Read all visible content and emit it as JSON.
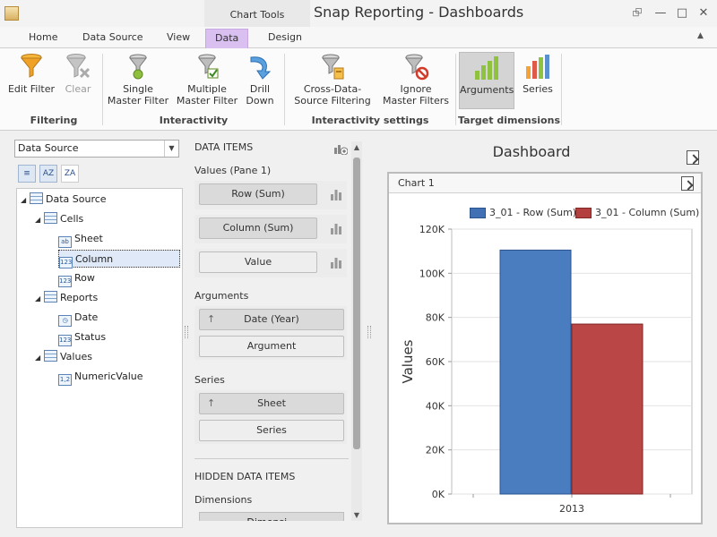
{
  "window": {
    "context_tab": "Chart Tools",
    "title": "Snap Reporting - Dashboards"
  },
  "tabs": [
    {
      "label": "Home"
    },
    {
      "label": "Data Source"
    },
    {
      "label": "View"
    },
    {
      "label": "Data",
      "active": true
    },
    {
      "label": "Design"
    }
  ],
  "ribbon": {
    "groups": [
      {
        "label": "Filtering"
      },
      {
        "label": "Interactivity"
      },
      {
        "label": "Interactivity settings"
      },
      {
        "label": "Target dimensions"
      }
    ],
    "buttons": [
      {
        "label": "Edit Filter",
        "icon": "funnel-icon"
      },
      {
        "label": "Clear",
        "icon": "clear-filter-icon",
        "disabled": true
      },
      {
        "label": "Single Master Filter",
        "icon": "single-master-filter-icon"
      },
      {
        "label": "Multiple Master Filter",
        "icon": "multiple-master-filter-icon"
      },
      {
        "label": "Drill Down",
        "icon": "drill-down-icon"
      },
      {
        "label": "Cross-Data-Source Filtering",
        "icon": "cross-data-source-icon"
      },
      {
        "label": "Ignore Master Filters",
        "icon": "ignore-filters-icon"
      },
      {
        "label": "Arguments",
        "icon": "arguments-chart-icon",
        "selected": true
      },
      {
        "label": "Series",
        "icon": "series-chart-icon"
      }
    ]
  },
  "datasource": {
    "selected": "Data Source",
    "tree": [
      {
        "label": "Data Source",
        "icon": "table-icon",
        "level": 0
      },
      {
        "label": "Cells",
        "icon": "table-icon",
        "level": 1
      },
      {
        "label": "Sheet",
        "icon": "text-field-icon",
        "level": 2
      },
      {
        "label": "Column",
        "icon": "number-field-icon",
        "level": 2,
        "selected": true
      },
      {
        "label": "Row",
        "icon": "number-field-icon",
        "level": 2
      },
      {
        "label": "Reports",
        "icon": "table-icon",
        "level": 1
      },
      {
        "label": "Date",
        "icon": "date-field-icon",
        "level": 2
      },
      {
        "label": "Status",
        "icon": "number-field-icon",
        "level": 2
      },
      {
        "label": "Values",
        "icon": "table-icon",
        "level": 1
      },
      {
        "label": "NumericValue",
        "icon": "decimal-field-icon",
        "level": 2
      }
    ]
  },
  "data_items": {
    "title": "DATA ITEMS",
    "values_label": "Values (Pane 1)",
    "values": [
      "Row (Sum)",
      "Column (Sum)",
      "Value"
    ],
    "arguments_label": "Arguments",
    "arguments": [
      "Date (Year)",
      "Argument"
    ],
    "series_label": "Series",
    "series": [
      "Sheet",
      "Series"
    ],
    "hidden_title": "HIDDEN DATA ITEMS",
    "dimensions_label": "Dimensions",
    "dimensions_partial": "Dimensi..."
  },
  "dashboard": {
    "title": "Dashboard",
    "chart_title": "Chart 1"
  },
  "chart_data": {
    "type": "bar",
    "categories": [
      "2013"
    ],
    "series": [
      {
        "name": "3_01 - Row (Sum)",
        "values": [
          110500
        ],
        "color": "#3f6fae"
      },
      {
        "name": "3_01 - Column (Sum)",
        "values": [
          77000
        ],
        "color": "#a8393a"
      }
    ],
    "ylabel": "Values",
    "ylim": [
      0,
      120000
    ],
    "yticks": [
      "0K",
      "20K",
      "40K",
      "60K",
      "80K",
      "100K",
      "120K"
    ],
    "grid": true,
    "legend": "top"
  }
}
